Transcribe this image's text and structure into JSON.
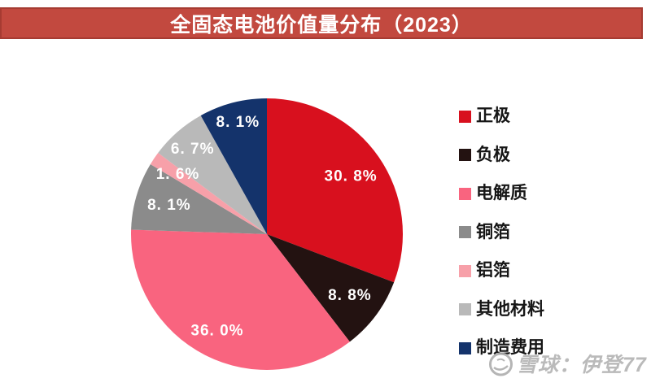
{
  "page": {
    "background": "#ffffff"
  },
  "header": {
    "title": "全固态电池价值量分布（2023）",
    "background": "#c2493f",
    "border_color": "#a63b32",
    "text_color": "#ffffff"
  },
  "chart_data": {
    "type": "pie",
    "title": "全固态电池价值量分布（2023）",
    "legend_position": "right",
    "start_angle_deg": 0,
    "direction": "clockwise",
    "data_label_color": "#ffffff",
    "series": [
      {
        "name": "正极",
        "value": 30.8,
        "label": "30. 8%",
        "color": "#d8101e"
      },
      {
        "name": "负极",
        "value": 8.8,
        "label": "8. 8%",
        "color": "#231211"
      },
      {
        "name": "电解质",
        "value": 36.0,
        "label": "36. 0%",
        "color": "#f9647f"
      },
      {
        "name": "铜箔",
        "value": 8.1,
        "label": "8. 1%",
        "color": "#8b8b8b"
      },
      {
        "name": "铝箔",
        "value": 1.6,
        "label": "1. 6%",
        "color": "#f7a0a9"
      },
      {
        "name": "其他材料",
        "value": 6.7,
        "label": "6. 7%",
        "color": "#b9b9b9"
      },
      {
        "name": "制造费用",
        "value": 8.1,
        "label": "8. 1%",
        "color": "#14336b"
      }
    ]
  },
  "watermark": {
    "text": "雪球：伊登77",
    "logo": "xueqiu-snowball-logo",
    "color": "#b3b3b3"
  }
}
